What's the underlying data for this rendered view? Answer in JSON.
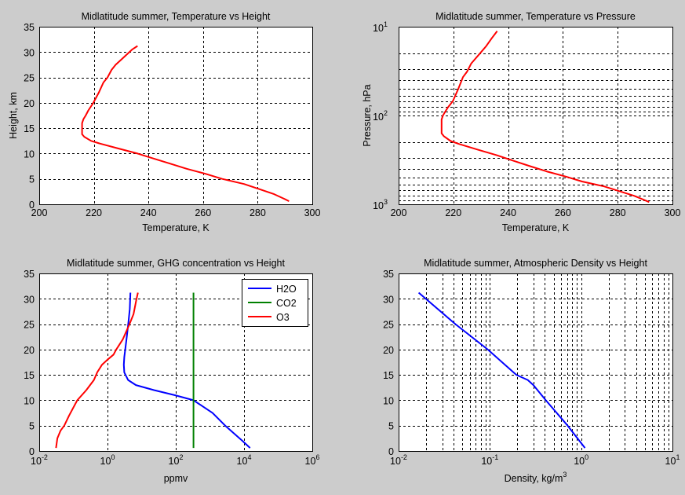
{
  "window": {
    "background": "#cccccc"
  },
  "chart_data": [
    {
      "type": "line",
      "title": "Midlatitude summer, Temperature vs Height",
      "xlabel": "Temperature, K",
      "xlabel_sup": "",
      "ylabel": "Height, km",
      "xscale": "linear",
      "yscale": "linear",
      "xlim": [
        200,
        300
      ],
      "ylim": [
        0,
        35
      ],
      "yreversed": false,
      "xticks": [
        200,
        220,
        240,
        260,
        280,
        300
      ],
      "yticks": [
        0,
        5,
        10,
        15,
        20,
        25,
        30,
        35
      ],
      "grid": "major",
      "legend": null,
      "series": [
        {
          "name": "Temperature",
          "color": "#ff0000",
          "x": [
            291.5,
            290,
            286,
            280.5,
            275,
            267,
            261,
            254,
            248,
            242,
            236,
            229,
            222,
            219,
            216.5,
            215.7,
            215.7,
            215.7,
            215.7,
            216.2,
            217,
            218,
            219.8,
            221.8,
            223.5,
            225,
            226.5,
            228,
            230,
            232,
            234,
            236
          ],
          "y": [
            0.6,
            1,
            2,
            3,
            4,
            5,
            6,
            7,
            8,
            9,
            10,
            11,
            12,
            12.5,
            13.3,
            13.8,
            14,
            15,
            16,
            16.8,
            17.5,
            18.5,
            20,
            22,
            24,
            25,
            26.5,
            27.5,
            28.5,
            29.5,
            30.5,
            31.2
          ]
        }
      ]
    },
    {
      "type": "line",
      "title": "Midlatitude summer, Temperature vs Pressure",
      "xlabel": "Temperature, K",
      "xlabel_sup": "",
      "ylabel": "Pressure, hPa",
      "xscale": "linear",
      "yscale": "log",
      "xlim": [
        200,
        300
      ],
      "ylim": [
        10,
        1000
      ],
      "yreversed": true,
      "xticks": [
        200,
        220,
        240,
        260,
        280,
        300
      ],
      "yticks": [
        10,
        100,
        1000
      ],
      "grid": "major+minor-y",
      "legend": null,
      "series": [
        {
          "name": "Temperature",
          "color": "#ff0000",
          "x": [
            291.5,
            290,
            286,
            280.5,
            275,
            267,
            261,
            254,
            248,
            242,
            236,
            229,
            222,
            219,
            216.5,
            215.7,
            215.7,
            215.7,
            215.7,
            216.2,
            217,
            218,
            219.8,
            221.8,
            223.5,
            225,
            226.5,
            228,
            230,
            232,
            234,
            236
          ],
          "y": [
            945,
            902,
            802,
            710,
            628,
            554,
            487,
            426,
            372,
            324,
            281,
            243,
            209,
            194,
            171,
            159,
            153,
            130,
            111,
            100,
            91,
            81,
            69,
            50,
            37,
            32,
            26,
            23,
            19.5,
            16.5,
            13.5,
            11.2
          ]
        }
      ]
    },
    {
      "type": "line",
      "title": "Midlatitude summer, GHG concentration vs Height",
      "xlabel": "ppmv",
      "xlabel_sup": "",
      "ylabel": "",
      "xscale": "log",
      "yscale": "linear",
      "xlim": [
        0.01,
        1000000
      ],
      "ylim": [
        0,
        35
      ],
      "yreversed": false,
      "xticks": [
        0.01,
        1,
        100,
        10000,
        1000000
      ],
      "yticks": [
        0,
        5,
        10,
        15,
        20,
        25,
        30,
        35
      ],
      "grid": "major",
      "legend": "top-right",
      "series": [
        {
          "name": "H2O",
          "color": "#0000ff",
          "x": [
            15000,
            9000,
            5000,
            2800,
            1200,
            330,
            95,
            23,
            6.8,
            4,
            3.1,
            3.0,
            3.1,
            3.3,
            3.6,
            3.9,
            4.2,
            4.5,
            4.7
          ],
          "y": [
            0.6,
            2,
            3.5,
            5,
            7.5,
            10,
            11,
            12,
            13,
            14,
            15.5,
            17,
            18.5,
            20,
            22,
            24,
            26,
            28,
            31.2
          ]
        },
        {
          "name": "CO2",
          "color": "#008000",
          "x": [
            330,
            330
          ],
          "y": [
            0.6,
            31.2
          ]
        },
        {
          "name": "O3",
          "color": "#ff0000",
          "x": [
            0.031,
            0.034,
            0.042,
            0.054,
            0.075,
            0.13,
            0.24,
            0.4,
            0.5,
            0.69,
            1.0,
            1.5,
            1.8,
            2.8,
            4.4,
            5.8,
            7.1,
            7.8
          ],
          "y": [
            0.6,
            2.5,
            4,
            5,
            7,
            10,
            12,
            14,
            15.5,
            17,
            18,
            19,
            20,
            22,
            25,
            27,
            30,
            31.2
          ]
        }
      ]
    },
    {
      "type": "line",
      "title": "Midlatitude summer, Atmospheric Density vs Height",
      "xlabel": "Density, kg/m",
      "xlabel_sup": "3",
      "ylabel": "",
      "xscale": "log",
      "yscale": "linear",
      "xlim": [
        0.01,
        10
      ],
      "ylim": [
        0,
        35
      ],
      "yreversed": false,
      "xticks": [
        0.01,
        0.1,
        1,
        10
      ],
      "yticks": [
        0,
        5,
        10,
        15,
        20,
        25,
        30,
        35
      ],
      "grid": "major+minor-x",
      "legend": null,
      "series": [
        {
          "name": "Density",
          "color": "#0000ff",
          "x": [
            1.1,
            0.71,
            0.41,
            0.3,
            0.26,
            0.195,
            0.095,
            0.042,
            0.0166
          ],
          "y": [
            0.6,
            5,
            10,
            13,
            14,
            15,
            20,
            25,
            31.2
          ]
        }
      ]
    }
  ]
}
